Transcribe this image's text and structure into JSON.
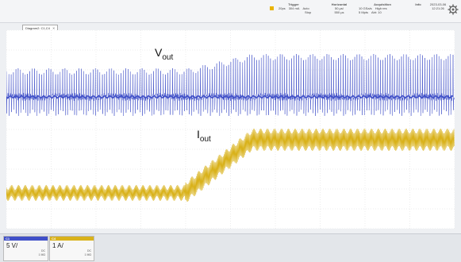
{
  "status": {
    "trigger": {
      "header": "Trigger",
      "row1": [
        "",
        "20ps",
        "304 mA",
        "Auto"
      ],
      "row2": [
        "",
        "",
        "",
        "Stop"
      ]
    },
    "horizontal": {
      "header": "Horizontal",
      "row1": [
        "50 µs/"
      ],
      "row2": [
        "550 µs"
      ]
    },
    "acquisition": {
      "header": "Acquisition",
      "row1": [
        "10 GSa/s",
        "High res",
        "",
        ""
      ],
      "row2": [
        "5 Mpts",
        "",
        "Abt: 10",
        ""
      ]
    },
    "info": {
      "header": "Info",
      "row1": [
        "",
        ""
      ],
      "row2": [
        "",
        ""
      ]
    },
    "datetime": {
      "date": "2023-03-06",
      "time": "12:21:26"
    }
  },
  "tab": {
    "label": "Diagram2: C1,C4",
    "close": "✕"
  },
  "annotations": {
    "v_main": "V",
    "v_sub": "out",
    "i_main": "I",
    "i_sub": "out"
  },
  "hlabels": [
    "",
    "",
    "",
    "",
    "",
    "",
    "",
    "",
    "",
    "",
    ""
  ],
  "channels": [
    {
      "name": "C1",
      "scale": "5 V/",
      "coupling": "DC",
      "imp": "1 MΩ",
      "offset": "",
      "bw": "",
      "color": "#3f4fc8"
    },
    {
      "name": "C4",
      "scale": "1 A/",
      "coupling": "DC",
      "imp": "1 MΩ",
      "offset": "",
      "bw": "",
      "color": "#d9b21b"
    }
  ],
  "colors": {
    "trace_c1": "#3f4fc8",
    "trace_c4": "#d9b21b",
    "grid": "#d9d9d9"
  }
}
